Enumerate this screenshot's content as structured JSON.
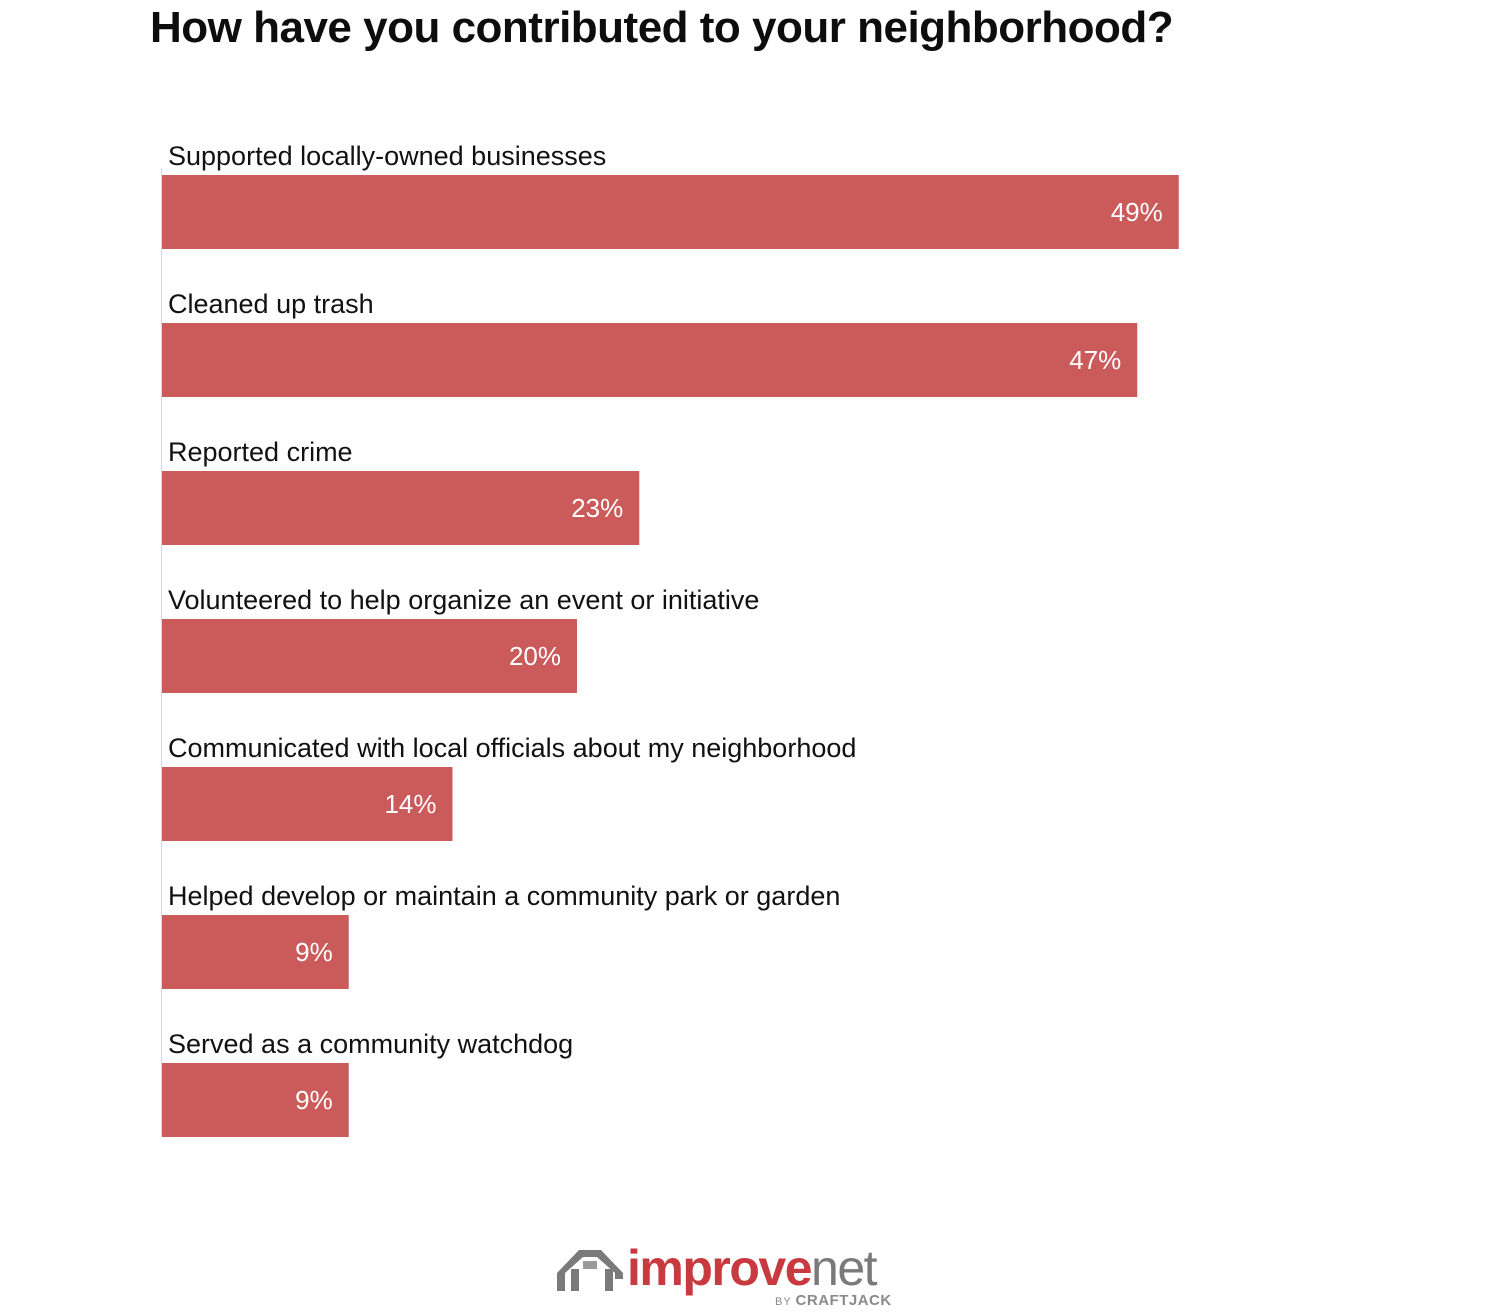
{
  "title": "How have you contributed to your neighborhood?",
  "colors": {
    "bar": "#cb5a5a",
    "title": "#0d0d0d",
    "value_label": "#ffffff",
    "logo_red": "#c83a3f",
    "logo_gray": "#7a7a7a"
  },
  "chart_data": {
    "type": "bar",
    "orientation": "horizontal",
    "title": "How have you contributed to your neighborhood?",
    "categories": [
      "Supported locally-owned businesses",
      "Cleaned up trash",
      "Reported crime",
      "Volunteered to help organize an event or initiative",
      "Communicated with local officials about my neighborhood",
      "Helped develop or maintain a community park or garden",
      "Served as a community watchdog"
    ],
    "values": [
      49,
      47,
      23,
      20,
      14,
      9,
      9
    ],
    "value_labels": [
      "49%",
      "47%",
      "23%",
      "20%",
      "14%",
      "9%",
      "9%"
    ],
    "unit": "%",
    "grid": false,
    "legend": "none"
  },
  "logo": {
    "word_primary": "improve",
    "word_secondary": "net",
    "by": "BY",
    "brand": "CRAFTJACK",
    "icon": "house-roof-icon"
  }
}
